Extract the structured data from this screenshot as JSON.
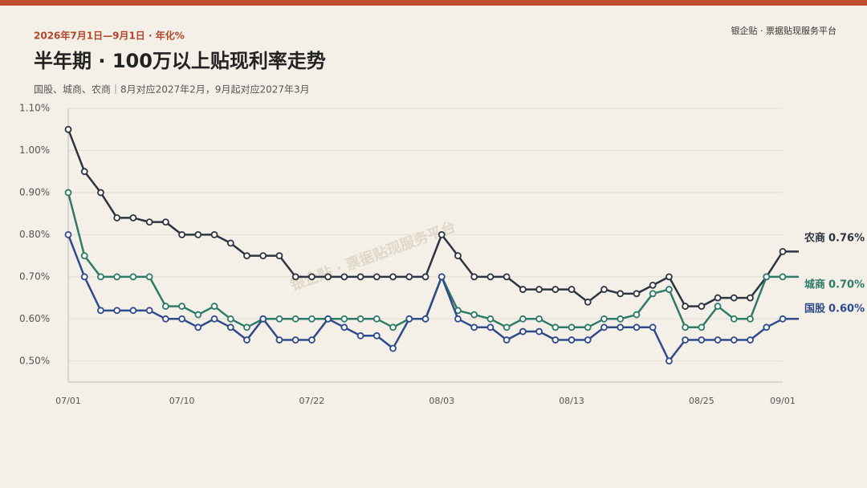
{
  "chart_data": {
    "type": "line",
    "kicker": "2026年7月1日—9月1日 · 年化%",
    "title": "半年期 · 100万以上贴现利率走势",
    "subtitle": "国股、城商、农商｜8月对应2027年2月，9月起对应2027年3月",
    "brand": "银企贴 · 票据贴现服务平台",
    "watermark": "银企贴 · 票据贴现服务平台",
    "categories": [
      "07/01",
      null,
      null,
      null,
      null,
      null,
      null,
      "07/10",
      null,
      null,
      null,
      null,
      null,
      null,
      null,
      "07/22",
      null,
      null,
      null,
      null,
      null,
      null,
      null,
      "08/03",
      null,
      null,
      null,
      null,
      null,
      null,
      null,
      "08/13",
      null,
      null,
      null,
      null,
      null,
      null,
      null,
      "08/25",
      null,
      null,
      null,
      null,
      "09/01"
    ],
    "ylim": [
      0.45,
      1.1
    ],
    "yticks": [
      {
        "value": 0.5,
        "label": "0.50%"
      },
      {
        "value": 0.6,
        "label": "0.60%"
      },
      {
        "value": 0.7,
        "label": "0.70%"
      },
      {
        "value": 0.8,
        "label": "0.80%"
      },
      {
        "value": 0.9,
        "label": "0.90%"
      },
      {
        "value": 1.0,
        "label": "1.00%"
      },
      {
        "value": 1.1,
        "label": "1.10%"
      }
    ],
    "grid": true,
    "series": [
      {
        "name": "农商",
        "color": "#2b3440",
        "values": [
          1.05,
          0.95,
          0.9,
          0.84,
          0.84,
          0.83,
          0.83,
          0.8,
          0.8,
          0.8,
          0.78,
          0.75,
          0.75,
          0.75,
          0.7,
          0.7,
          0.7,
          0.7,
          0.7,
          0.7,
          0.7,
          0.7,
          0.7,
          0.8,
          0.75,
          0.7,
          0.7,
          0.7,
          0.67,
          0.67,
          0.67,
          0.67,
          0.64,
          0.67,
          0.66,
          0.66,
          0.68,
          0.7,
          0.63,
          0.63,
          0.65,
          0.65,
          0.65,
          0.7,
          0.76
        ],
        "value_labels": [
          null,
          null,
          null,
          null,
          null,
          null,
          null,
          null,
          null,
          null,
          null,
          null,
          null,
          null,
          null,
          null,
          null,
          null,
          null,
          null,
          null,
          null,
          null,
          null,
          null,
          null,
          null,
          null,
          null,
          null,
          null,
          null,
          null,
          null,
          null,
          null,
          null,
          null,
          null,
          null,
          null,
          null,
          null,
          null,
          "0.76%"
        ]
      },
      {
        "name": "城商",
        "color": "#2e7a68",
        "values": [
          0.9,
          0.75,
          0.7,
          0.7,
          0.7,
          0.7,
          0.63,
          0.63,
          0.61,
          0.63,
          0.6,
          0.58,
          0.6,
          0.6,
          0.6,
          0.6,
          0.6,
          0.6,
          0.6,
          0.6,
          0.58,
          0.6,
          0.6,
          0.7,
          0.62,
          0.61,
          0.6,
          0.58,
          0.6,
          0.6,
          0.58,
          0.58,
          0.58,
          0.6,
          0.6,
          0.61,
          0.66,
          0.67,
          0.58,
          0.58,
          0.63,
          0.6,
          0.6,
          0.7,
          0.7
        ],
        "value_labels": [
          null,
          null,
          null,
          null,
          null,
          null,
          null,
          null,
          null,
          null,
          null,
          null,
          null,
          null,
          null,
          null,
          null,
          null,
          null,
          null,
          null,
          null,
          null,
          null,
          null,
          null,
          null,
          null,
          null,
          null,
          null,
          null,
          null,
          null,
          null,
          null,
          null,
          null,
          null,
          null,
          null,
          null,
          null,
          null,
          "0.70%"
        ]
      },
      {
        "name": "国股",
        "color": "#2e4a8a",
        "values": [
          0.8,
          0.7,
          0.62,
          0.62,
          0.62,
          0.62,
          0.6,
          0.6,
          0.58,
          0.6,
          0.58,
          0.55,
          0.6,
          0.55,
          0.55,
          0.55,
          0.6,
          0.58,
          0.56,
          0.56,
          0.53,
          0.6,
          0.6,
          0.7,
          0.6,
          0.58,
          0.58,
          0.55,
          0.57,
          0.57,
          0.55,
          0.55,
          0.55,
          0.58,
          0.58,
          0.58,
          0.58,
          0.5,
          0.55,
          0.55,
          0.55,
          0.55,
          0.55,
          0.58,
          0.6
        ],
        "value_labels": [
          null,
          null,
          null,
          null,
          null,
          null,
          null,
          null,
          null,
          null,
          null,
          null,
          null,
          null,
          null,
          null,
          null,
          null,
          null,
          null,
          null,
          null,
          null,
          null,
          null,
          null,
          null,
          null,
          null,
          null,
          null,
          null,
          null,
          null,
          null,
          null,
          null,
          null,
          null,
          null,
          null,
          null,
          null,
          null,
          "0.60%"
        ]
      }
    ]
  }
}
